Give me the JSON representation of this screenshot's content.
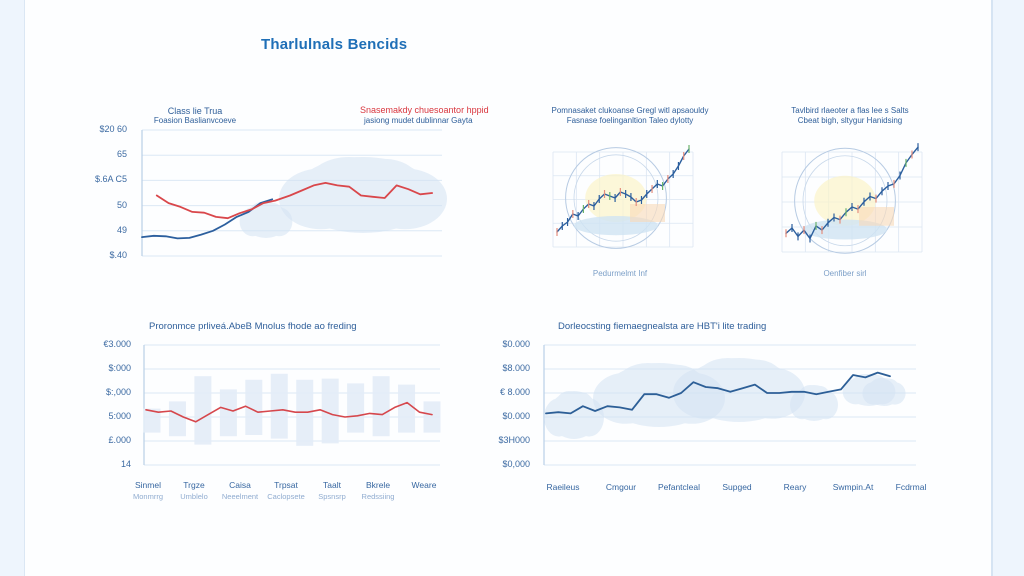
{
  "page": {
    "title": "Tharlulnals Bencids"
  },
  "chart_data": [
    {
      "id": "top-left",
      "type": "line",
      "title_left": [
        "Class lie Trua",
        "Foasion Baslianvcoeve"
      ],
      "title_right": [
        "Snasemakdy chuesoantor hppid",
        "jasiong mudet dublinnar Gayta"
      ],
      "yticks": [
        "$20 60",
        "65",
        "$.6A C5",
        "50",
        "49",
        "$.40"
      ],
      "ylim": [
        0,
        5
      ],
      "grid": true,
      "series": [
        {
          "name": "blue",
          "color": "#2c5f9e",
          "x": [
            0,
            0.04,
            0.08,
            0.12,
            0.16,
            0.2,
            0.24,
            0.28,
            0.32,
            0.36,
            0.4,
            0.44
          ],
          "values": [
            0.75,
            0.8,
            0.78,
            0.7,
            0.72,
            0.85,
            1.0,
            1.25,
            1.55,
            1.75,
            2.1,
            2.25
          ]
        },
        {
          "name": "red",
          "color": "#d9474b",
          "x": [
            0.05,
            0.09,
            0.13,
            0.17,
            0.21,
            0.25,
            0.29,
            0.33,
            0.37,
            0.41,
            0.45,
            0.5,
            0.54,
            0.58,
            0.62,
            0.66,
            0.7,
            0.74,
            0.78,
            0.82,
            0.86,
            0.9,
            0.94,
            0.98
          ],
          "values": [
            2.4,
            2.1,
            1.95,
            1.75,
            1.72,
            1.55,
            1.5,
            1.7,
            1.85,
            2.1,
            2.2,
            2.4,
            2.6,
            2.8,
            2.9,
            2.8,
            2.75,
            2.4,
            2.35,
            2.3,
            2.8,
            2.65,
            2.45,
            2.5
          ]
        }
      ],
      "clouds": true
    },
    {
      "id": "top-middle",
      "type": "line",
      "title": [
        "Pomnasaket clukoanse Gregl witl apsaouldy",
        "Fasnase foelinganltion Taleo dylotty"
      ],
      "footer": "Pedurmelmt Inf",
      "series": [
        {
          "name": "price",
          "color": "#2c5f9e",
          "values": [
            0.12,
            0.18,
            0.22,
            0.3,
            0.28,
            0.35,
            0.4,
            0.38,
            0.45,
            0.5,
            0.48,
            0.46,
            0.52,
            0.5,
            0.47,
            0.42,
            0.44,
            0.5,
            0.55,
            0.6,
            0.58,
            0.65,
            0.7,
            0.78,
            0.88,
            0.95
          ]
        }
      ]
    },
    {
      "id": "top-right",
      "type": "line",
      "title": [
        "Tavlbird rlaeoter a flas lee s Salts",
        "Cbeat bigh, sltygur Hanidsing"
      ],
      "footer": "Oenfiber sirl",
      "series": [
        {
          "name": "price",
          "color": "#2c5f9e",
          "values": [
            0.15,
            0.2,
            0.12,
            0.18,
            0.1,
            0.22,
            0.18,
            0.25,
            0.3,
            0.28,
            0.35,
            0.4,
            0.38,
            0.45,
            0.5,
            0.48,
            0.55,
            0.6,
            0.62,
            0.7,
            0.82,
            0.9,
            0.97
          ]
        }
      ]
    },
    {
      "id": "bottom-left",
      "type": "bar",
      "title": "Proronmce prliveá.AbeB Mnolus fhode ao freding",
      "yticks": [
        "€3.000",
        "$:000",
        "$:,000",
        "5:000",
        "£.000",
        "14"
      ],
      "ylim": [
        0,
        5
      ],
      "grid": true,
      "categories": [
        {
          "label": "Sinmel",
          "sub": "Monmrrg"
        },
        {
          "label": "Trgze",
          "sub": "Umblelo"
        },
        {
          "label": "Caisa",
          "sub": "Neeelment"
        },
        {
          "label": "Trpsat",
          "sub": "Caclopsete"
        },
        {
          "label": "Taalt",
          "sub": "Spsnsrp"
        },
        {
          "label": "Bkrele",
          "sub": "Redssiing"
        },
        {
          "label": "Weare",
          "sub": ""
        }
      ],
      "bars": [
        {
          "low": 1.35,
          "high": 2.35
        },
        {
          "low": 1.2,
          "high": 2.65
        },
        {
          "low": 0.85,
          "high": 3.7
        },
        {
          "low": 1.2,
          "high": 3.15
        },
        {
          "low": 1.25,
          "high": 3.55
        },
        {
          "low": 1.1,
          "high": 3.8
        },
        {
          "low": 0.8,
          "high": 3.55
        },
        {
          "low": 0.9,
          "high": 3.6
        },
        {
          "low": 1.35,
          "high": 3.4
        },
        {
          "low": 1.2,
          "high": 3.7
        },
        {
          "low": 1.35,
          "high": 3.35
        },
        {
          "low": 1.35,
          "high": 2.65
        }
      ],
      "series": [
        {
          "name": "red",
          "color": "#d6474c",
          "values": [
            2.3,
            2.2,
            2.25,
            2.0,
            1.8,
            2.1,
            2.4,
            2.25,
            2.45,
            2.2,
            2.25,
            2.3,
            2.2,
            2.2,
            2.3,
            2.1,
            2.0,
            2.05,
            2.15,
            2.1,
            2.4,
            2.6,
            2.2,
            2.1
          ]
        }
      ]
    },
    {
      "id": "bottom-right",
      "type": "line",
      "title": "Dorleocsting fiemaegnealsta are HBT'i lite trading",
      "yticks": [
        "$0.000",
        "$8.000",
        "€ 8.000",
        "$0.000",
        "$3H000",
        "$0,000"
      ],
      "ylim": [
        0,
        5
      ],
      "grid": true,
      "categories": [
        "Raeileus",
        "Cmgour",
        "Pefantcleal",
        "Supged",
        "Reary",
        "Swmpin.At",
        "Fcdrmal"
      ],
      "series": [
        {
          "name": "blue",
          "color": "#2d5f97",
          "values": [
            2.15,
            2.2,
            2.15,
            2.45,
            2.25,
            2.45,
            2.4,
            2.3,
            2.95,
            2.95,
            2.8,
            3.0,
            3.45,
            3.25,
            3.2,
            3.05,
            3.2,
            3.35,
            3.0,
            3.0,
            3.05,
            3.05,
            2.95,
            3.05,
            3.15,
            3.75,
            3.65,
            3.85,
            3.7
          ]
        }
      ],
      "clouds": true
    }
  ]
}
